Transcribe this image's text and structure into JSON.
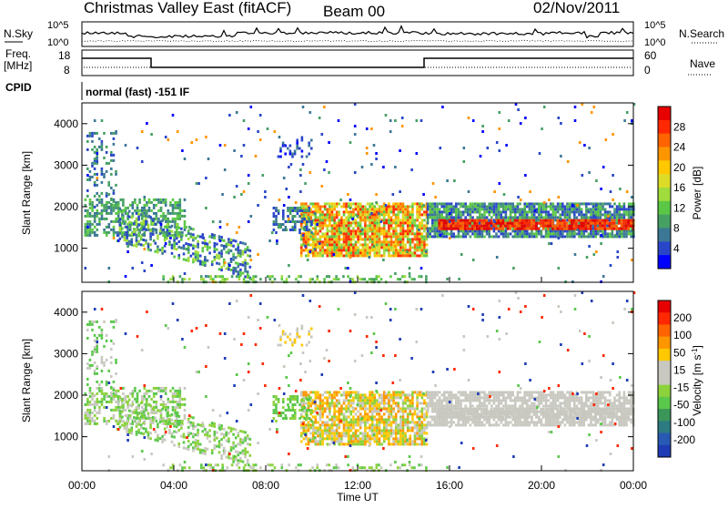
{
  "header": {
    "site_title": "Christmas Valley East (fitACF)",
    "beam": "Beam 00",
    "date": "02/Nov/2011"
  },
  "top_panels": {
    "nsky_label": "N.Sky",
    "nsky_ticks": [
      "10^5",
      "10^0"
    ],
    "nsearch_label": "N.Search",
    "nsearch_ticks": [
      "10^5",
      "10^0"
    ],
    "freq_label": "Freq.",
    "freq_unit": "[MHz]",
    "freq_ticks": [
      "18",
      "8"
    ],
    "nave_label": "Nave",
    "nave_ticks": [
      "60",
      "0"
    ],
    "cpid_label": "CPID",
    "cpid_text": "normal (fast) -151 IF"
  },
  "chart_data": [
    {
      "type": "heatmap",
      "name": "power",
      "ylabel": "Slant Range [km]",
      "yticks": [
        "4000",
        "3000",
        "2000",
        "1000"
      ],
      "ylim": [
        180,
        4500
      ],
      "colorbar": {
        "label": "Power [dB]",
        "ticks": [
          "28",
          "24",
          "20",
          "16",
          "12",
          "8",
          "4"
        ],
        "colors": [
          "#0000ff",
          "#2a46c8",
          "#3c7896",
          "#46a064",
          "#5ac846",
          "#a0dc3c",
          "#dcdc28",
          "#ffc800",
          "#ff9600",
          "#ff6400",
          "#ff2800",
          "#e60000"
        ]
      }
    },
    {
      "type": "heatmap",
      "name": "velocity",
      "ylabel": "Slant Range [km]",
      "yticks": [
        "4000",
        "3000",
        "2000",
        "1000"
      ],
      "ylim": [
        180,
        4500
      ],
      "colorbar": {
        "label": "Velocity [m s",
        "label_sup": "-1",
        "label_end": "]",
        "ticks": [
          "200",
          "100",
          "50",
          "15",
          "-15",
          "-50",
          "-100",
          "-200"
        ],
        "colors": [
          "#1e3cb4",
          "#285ab4",
          "#2d7a82",
          "#3c965a",
          "#5ac84b",
          "#8cd23c",
          "#c8c8c0",
          "#c8c8c0",
          "#ffc800",
          "#ff9600",
          "#ff6400",
          "#ff2800",
          "#e60000"
        ]
      }
    }
  ],
  "xaxis": {
    "label": "Time UT",
    "ticks": [
      "00:00",
      "04:00",
      "08:00",
      "12:00",
      "16:00",
      "20:00",
      "00:00"
    ]
  }
}
